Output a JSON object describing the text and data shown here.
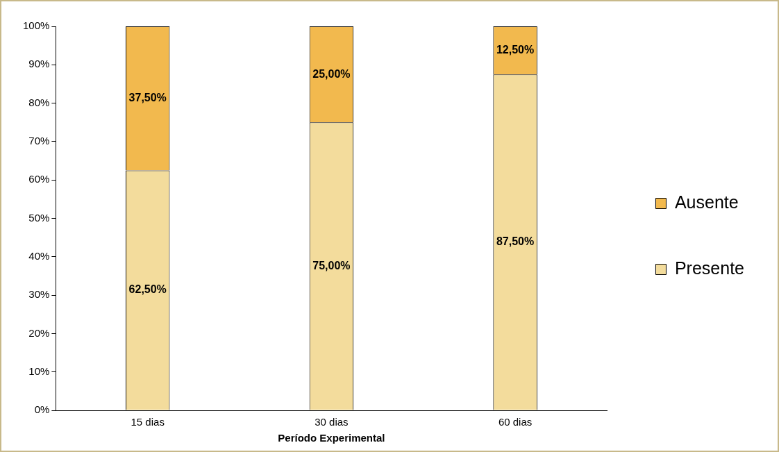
{
  "chart_data": {
    "type": "bar",
    "xlabel": "Período Experimental",
    "categories": [
      "15 dias",
      "30 dias",
      "60 dias"
    ],
    "stacked": true,
    "legend": "right",
    "ylim": [
      0,
      100
    ],
    "yticks": [
      {
        "value": 0,
        "label": "0%"
      },
      {
        "value": 10,
        "label": "10%"
      },
      {
        "value": 20,
        "label": "20%"
      },
      {
        "value": 30,
        "label": "30%"
      },
      {
        "value": 40,
        "label": "40%"
      },
      {
        "value": 50,
        "label": "50%"
      },
      {
        "value": 60,
        "label": "60%"
      },
      {
        "value": 70,
        "label": "70%"
      },
      {
        "value": 80,
        "label": "80%"
      },
      {
        "value": 90,
        "label": "90%"
      },
      {
        "value": 100,
        "label": "100%"
      }
    ],
    "series": [
      {
        "name": "Presente",
        "color": "#f3dc9c",
        "values": [
          62.5,
          75,
          87.5
        ],
        "value_labels": [
          "62,50%",
          "75,00%",
          "87,50%"
        ]
      },
      {
        "name": "Ausente",
        "color": "#f2b94e",
        "values": [
          37.5,
          25,
          12.5
        ],
        "value_labels": [
          "37,50%",
          "25,00%",
          "12,50%"
        ]
      }
    ]
  }
}
